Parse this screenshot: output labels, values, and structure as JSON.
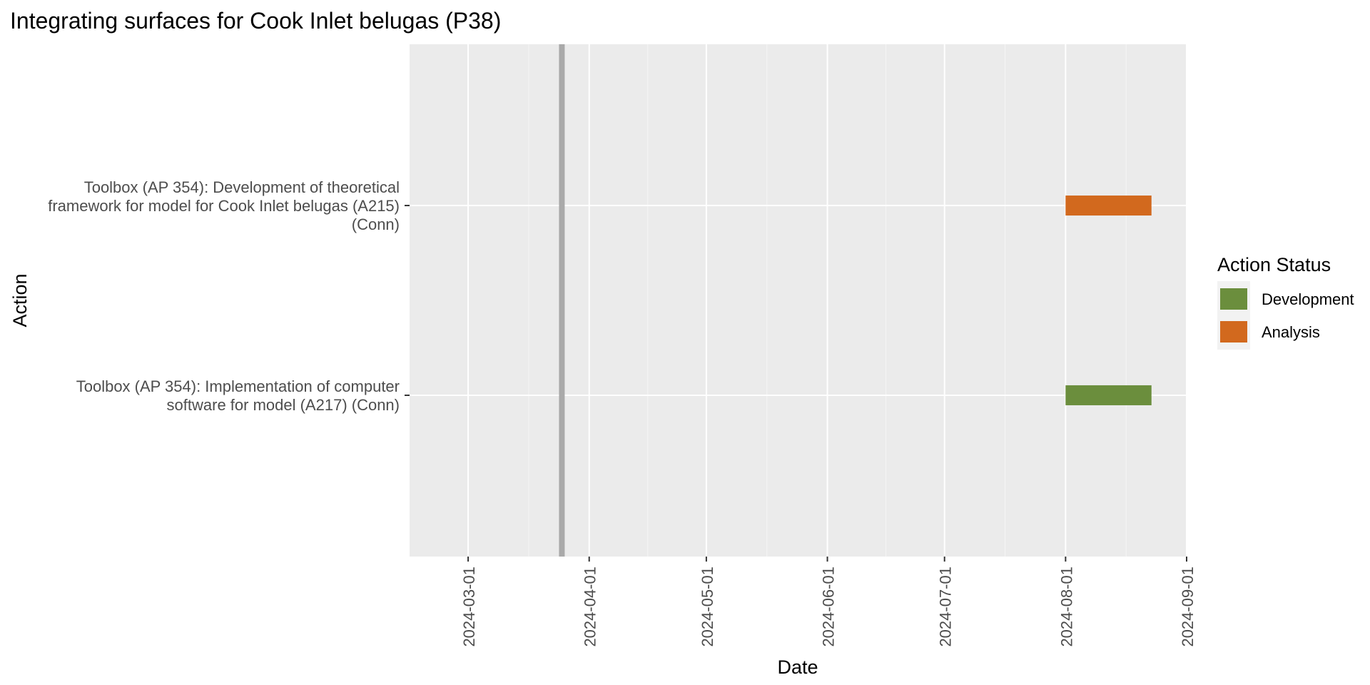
{
  "chart_data": {
    "type": "bar",
    "title": "Integrating surfaces for Cook Inlet belugas (P38)",
    "xlabel": "Date",
    "ylabel": "Action",
    "x_axis": {
      "type": "date",
      "range": [
        "2024-02-15",
        "2024-09-01"
      ],
      "ticks": [
        "2024-03-01",
        "2024-04-01",
        "2024-05-01",
        "2024-06-01",
        "2024-07-01",
        "2024-08-01",
        "2024-09-01"
      ]
    },
    "reference_line": {
      "date": "2024-03-25",
      "color": "#A9A9A9"
    },
    "categories": [
      {
        "label_lines": [
          "Toolbox (AP 354): Development of theoretical",
          "framework for model for Cook Inlet belugas (A215)",
          "(Conn)"
        ],
        "start": "2024-08-01",
        "end": "2024-08-23",
        "status": "Analysis"
      },
      {
        "label_lines": [
          "Toolbox (AP 354): Implementation of computer",
          "software for model (A217) (Conn)"
        ],
        "start": "2024-08-01",
        "end": "2024-08-23",
        "status": "Development"
      }
    ],
    "legend": {
      "title": "Action Status",
      "position": "right",
      "items": [
        {
          "name": "Development",
          "color": "#6B8E3D"
        },
        {
          "name": "Analysis",
          "color": "#D2691E"
        }
      ]
    },
    "grid": true,
    "panel_background": "#EBEBEB"
  }
}
